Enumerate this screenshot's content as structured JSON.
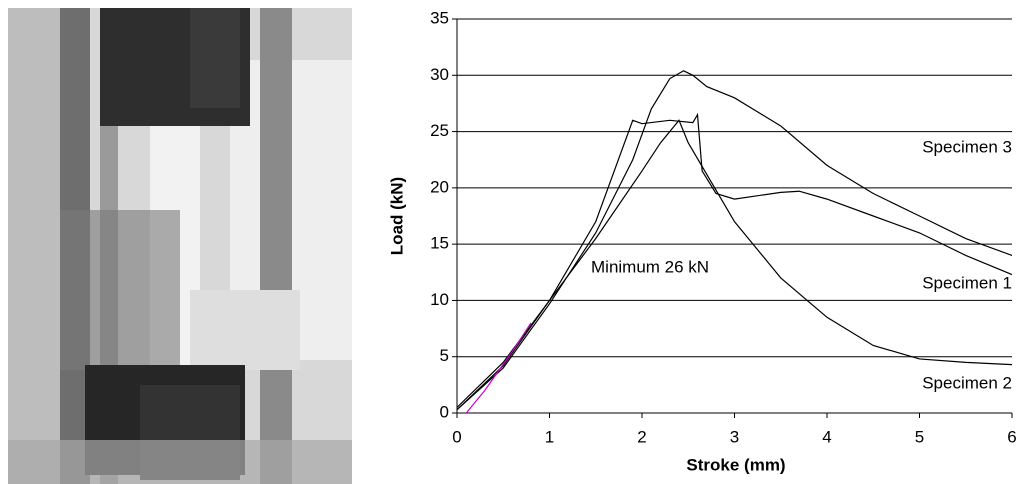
{
  "chart_data": {
    "type": "line",
    "xlabel": "Stroke (mm)",
    "ylabel": "Load (kN)",
    "xlim": [
      0,
      6
    ],
    "ylim": [
      0,
      35
    ],
    "xticks": [
      0,
      1,
      2,
      3,
      4,
      5,
      6
    ],
    "yticks": [
      0,
      5,
      10,
      15,
      20,
      25,
      30,
      35
    ],
    "grid": true,
    "annotations": [
      "Specimen 3",
      "Specimen 1",
      "Specimen 2",
      "Minimum 26 kN"
    ],
    "series": [
      {
        "color": "#000000",
        "x": [
          0,
          0.5,
          1,
          1.5,
          1.9,
          2.1,
          2.3,
          2.45,
          2.55,
          2.7,
          3,
          3.5,
          4,
          4.5,
          5,
          5.5,
          6
        ],
        "values": [
          0.3,
          4,
          9.7,
          16,
          22.5,
          27,
          29.7,
          30.4,
          30,
          29,
          28,
          25.5,
          22,
          19.5,
          17.5,
          15.5,
          14
        ]
      },
      {
        "color": "#000000",
        "x": [
          0,
          0.5,
          1,
          1.5,
          1.9,
          2.0,
          2.3,
          2.55,
          2.6,
          2.65,
          2.8,
          3,
          3.5,
          3.7,
          4,
          4.5,
          5,
          5.5,
          6
        ],
        "values": [
          0.3,
          4.2,
          10,
          17,
          26,
          25.7,
          26,
          25.8,
          26.5,
          21.5,
          19.5,
          19,
          19.6,
          19.7,
          19,
          17.5,
          16,
          14,
          12.3
        ]
      },
      {
        "color": "#000000",
        "x": [
          0,
          0.5,
          1,
          1.5,
          2,
          2.2,
          2.4,
          2.5,
          3,
          3.5,
          4,
          4.5,
          5,
          5.5,
          6
        ],
        "values": [
          0.5,
          4.5,
          10,
          15.5,
          21.5,
          24,
          26,
          24,
          17,
          12,
          8.5,
          6,
          4.8,
          4.5,
          4.3
        ]
      },
      {
        "color": "#cc00cc",
        "x": [
          0.1,
          0.3,
          0.6,
          0.8
        ],
        "values": [
          0,
          2,
          5.5,
          8
        ]
      }
    ]
  }
}
